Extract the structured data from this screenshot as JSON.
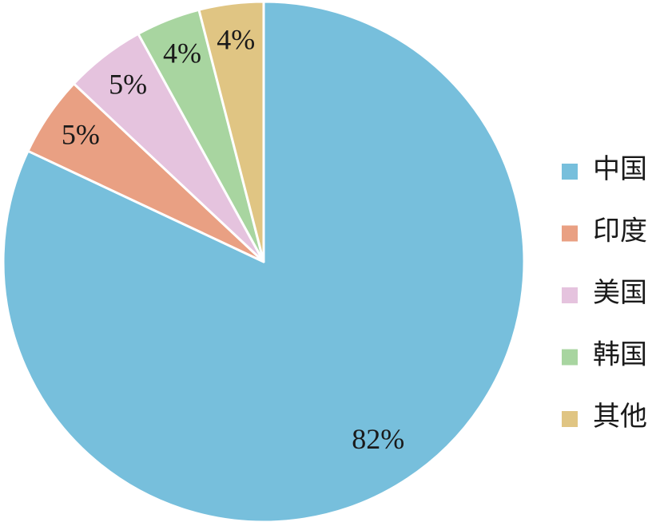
{
  "chart_data": {
    "type": "pie",
    "categories": [
      "中国",
      "印度",
      "美国",
      "韩国",
      "其他"
    ],
    "values": [
      82,
      5,
      5,
      4,
      4
    ],
    "value_labels": [
      "82%",
      "5%",
      "5%",
      "4%",
      "4%"
    ],
    "colors": [
      "#77bfdc",
      "#e9a083",
      "#e5c3de",
      "#a8d5a0",
      "#e0c583"
    ],
    "legend": "right"
  }
}
